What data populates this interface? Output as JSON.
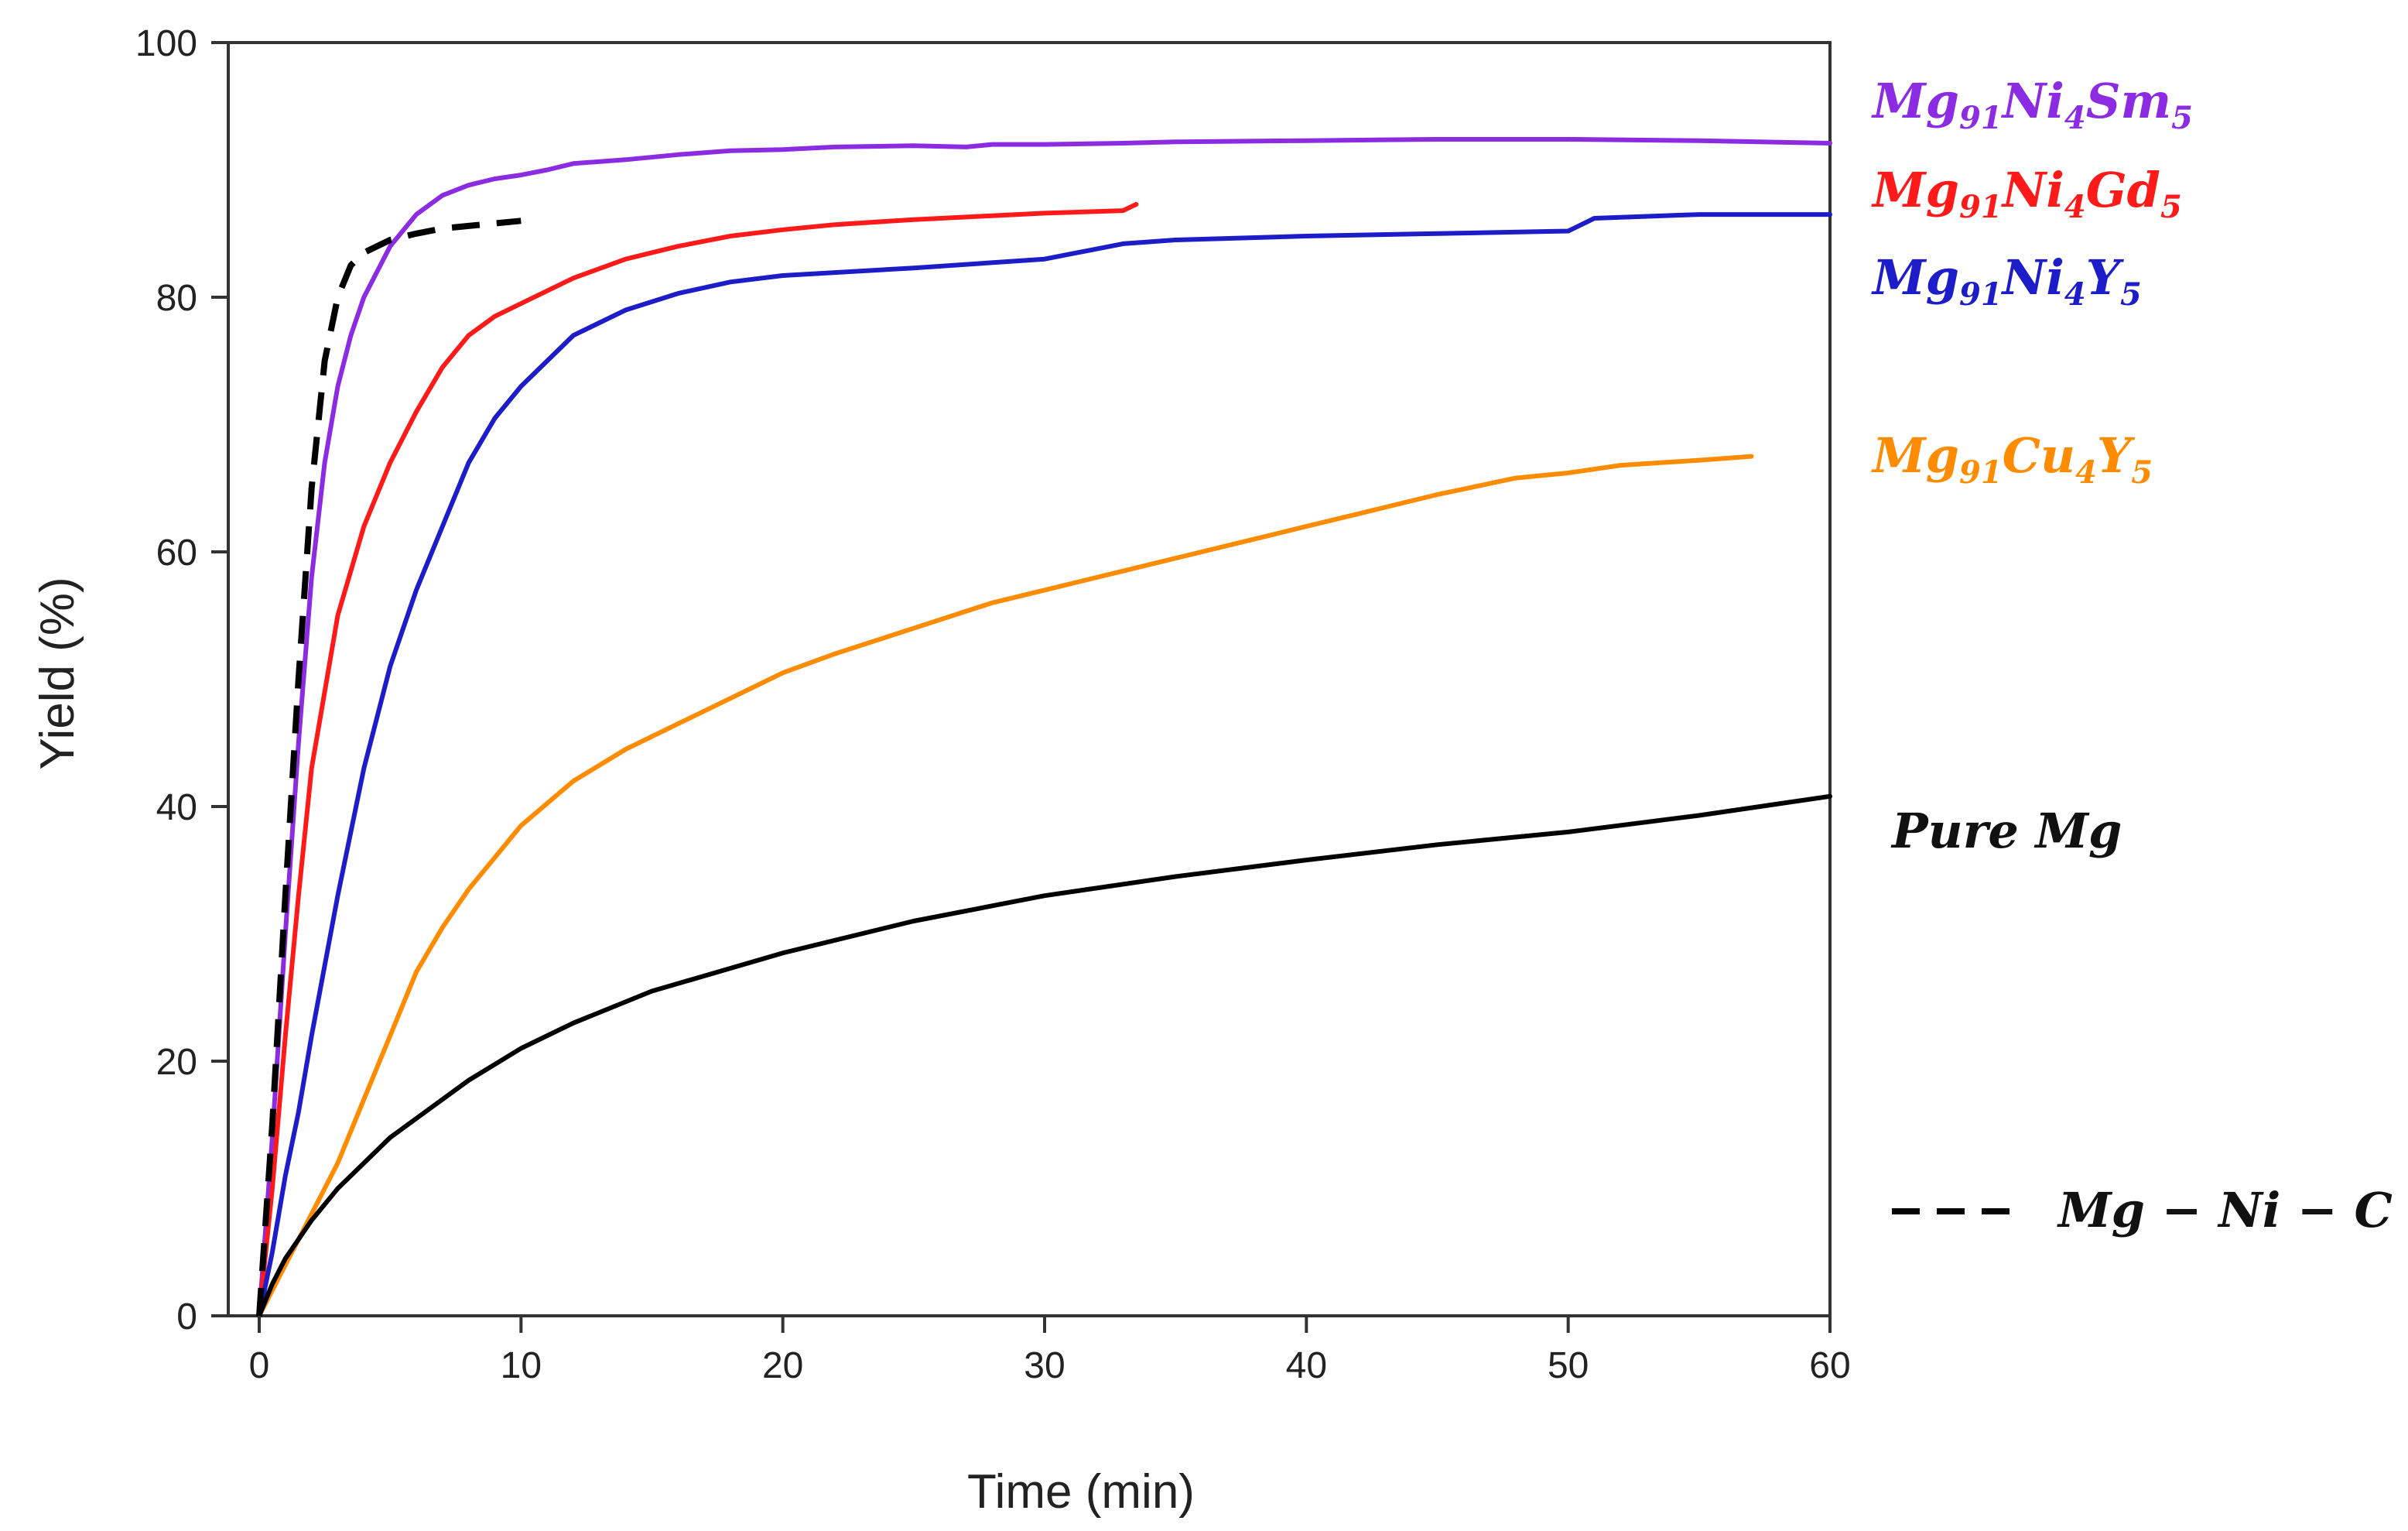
{
  "chart_data": {
    "type": "line",
    "title": "",
    "xlabel": "Time (min)",
    "ylabel": "Yield (%)",
    "xlim": [
      0,
      60
    ],
    "ylim": [
      0,
      100
    ],
    "xticks": [
      0,
      10,
      20,
      30,
      40,
      50,
      60
    ],
    "yticks": [
      0,
      20,
      40,
      60,
      80,
      100
    ],
    "grid": false,
    "legend_placement": "right",
    "series": [
      {
        "name": "Mg91Ni4Sm5",
        "label_parts": [
          [
            "Mg",
            ""
          ],
          [
            "91",
            "sub"
          ],
          [
            "Ni",
            ""
          ],
          [
            "4",
            "sub"
          ],
          [
            "Sm",
            ""
          ],
          [
            "5",
            "sub"
          ]
        ],
        "color": "#8b2be2",
        "dash": "solid",
        "x": [
          0,
          0.5,
          1,
          1.5,
          2,
          2.5,
          3,
          3.5,
          4,
          5,
          6,
          7,
          8,
          9,
          10,
          11,
          12,
          14,
          16,
          18,
          20,
          22,
          25,
          27,
          28,
          30,
          33,
          35,
          40,
          45,
          50,
          55,
          60
        ],
        "y": [
          0,
          14,
          30,
          45,
          58,
          67,
          73,
          77,
          80,
          84,
          86.5,
          88,
          88.8,
          89.3,
          89.6,
          90,
          90.5,
          90.8,
          91.2,
          91.5,
          91.6,
          91.8,
          91.9,
          91.8,
          92,
          92,
          92.1,
          92.2,
          92.3,
          92.4,
          92.4,
          92.3,
          92.1
        ]
      },
      {
        "name": "Mg91Ni4Gd5",
        "label_parts": [
          [
            "Mg",
            ""
          ],
          [
            "91",
            "sub"
          ],
          [
            "Ni",
            ""
          ],
          [
            "4",
            "sub"
          ],
          [
            "Gd",
            ""
          ],
          [
            "5",
            "sub"
          ]
        ],
        "color": "#ff1a1a",
        "dash": "solid",
        "x": [
          0,
          0.5,
          1,
          1.5,
          2,
          3,
          4,
          5,
          6,
          7,
          8,
          9,
          10,
          12,
          14,
          16,
          18,
          20,
          22,
          25,
          28,
          30,
          33,
          33.5
        ],
        "y": [
          0,
          10,
          22,
          33,
          43,
          55,
          62,
          67,
          71,
          74.5,
          77,
          78.5,
          79.5,
          81.5,
          83,
          84,
          84.8,
          85.3,
          85.7,
          86.1,
          86.4,
          86.6,
          86.8,
          87.3
        ]
      },
      {
        "name": "Mg91Ni4Y5",
        "label_parts": [
          [
            "Mg",
            ""
          ],
          [
            "91",
            "sub"
          ],
          [
            "Ni",
            ""
          ],
          [
            "4",
            "sub"
          ],
          [
            "Y",
            ""
          ],
          [
            "5",
            "sub"
          ]
        ],
        "color": "#1c1cc8",
        "dash": "solid",
        "x": [
          0,
          0.5,
          1,
          1.5,
          2,
          3,
          4,
          5,
          6,
          7,
          8,
          9,
          10,
          12,
          14,
          16,
          18,
          20,
          25,
          30,
          33,
          35,
          40,
          45,
          50,
          51,
          55,
          60
        ],
        "y": [
          0,
          5,
          11,
          16,
          22,
          33,
          43,
          51,
          57,
          62,
          67,
          70.5,
          73,
          77,
          79,
          80.3,
          81.2,
          81.7,
          82.3,
          83,
          84.2,
          84.5,
          84.8,
          85,
          85.2,
          86.2,
          86.5,
          86.5
        ]
      },
      {
        "name": "Mg91Cu4Y5",
        "label_parts": [
          [
            "Mg",
            ""
          ],
          [
            "91",
            "sub"
          ],
          [
            "Cu",
            ""
          ],
          [
            "4",
            "sub"
          ],
          [
            "Y",
            ""
          ],
          [
            "5",
            "sub"
          ]
        ],
        "color": "#ff8c00",
        "dash": "solid",
        "x": [
          0,
          1,
          2,
          3,
          4,
          5,
          6,
          7,
          8,
          9,
          10,
          12,
          14,
          16,
          18,
          20,
          22,
          25,
          28,
          30,
          33,
          35,
          38,
          40,
          42,
          45,
          48,
          50,
          52,
          55,
          57
        ],
        "y": [
          0,
          4,
          8,
          12,
          17,
          22,
          27,
          30.5,
          33.5,
          36,
          38.5,
          42,
          44.5,
          46.5,
          48.5,
          50.5,
          52,
          54,
          56,
          57,
          58.5,
          59.5,
          61,
          62,
          63,
          64.5,
          65.8,
          66.2,
          66.8,
          67.2,
          67.5
        ]
      },
      {
        "name": "Pure Mg",
        "label_parts": [
          [
            "Pure Mg",
            ""
          ]
        ],
        "color": "#000000",
        "dash": "solid",
        "x": [
          0,
          0.5,
          1,
          2,
          3,
          4,
          5,
          6,
          8,
          10,
          12,
          15,
          20,
          25,
          30,
          35,
          40,
          45,
          50,
          55,
          60
        ],
        "y": [
          0,
          2.5,
          4.5,
          7.5,
          10,
          12,
          14,
          15.5,
          18.5,
          21,
          23,
          25.5,
          28.5,
          31,
          33,
          34.5,
          35.8,
          37,
          38,
          39.3,
          40.8
        ]
      },
      {
        "name": "Mg − Ni − C",
        "label_parts": [
          [
            "Mg − Ni − C",
            ""
          ]
        ],
        "color": "#000000",
        "dash": "dashed",
        "x": [
          0,
          0.5,
          1,
          1.5,
          2,
          2.5,
          3,
          3.5,
          4,
          5,
          6,
          7,
          8,
          9,
          10
        ],
        "y": [
          0,
          15,
          33,
          50,
          65,
          75,
          80,
          82.5,
          83.5,
          84.5,
          85,
          85.4,
          85.6,
          85.8,
          86
        ]
      }
    ]
  }
}
